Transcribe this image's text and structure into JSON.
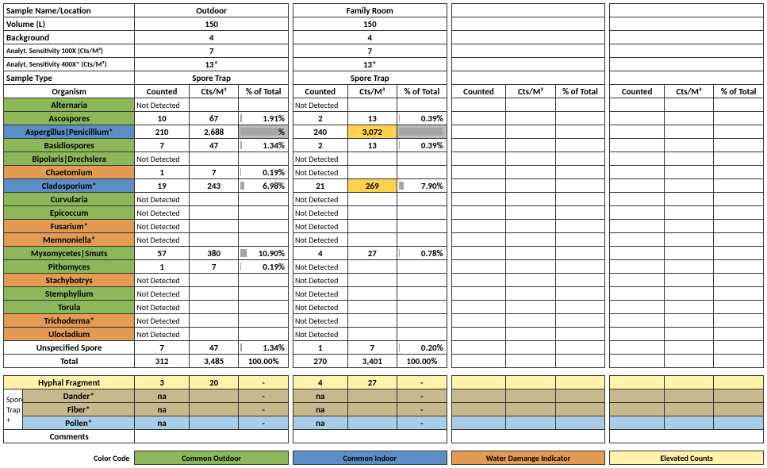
{
  "header_rows": [
    {
      "label": "Sample Name/Location",
      "vals": [
        "Outdoor",
        "Family Room",
        "",
        ""
      ]
    },
    {
      "label": "Volume (L)",
      "vals": [
        "150",
        "150",
        "",
        ""
      ]
    },
    {
      "label": "Background",
      "vals": [
        "4",
        "4",
        "",
        ""
      ]
    },
    {
      "label": "Analyt. Sensitivity 100X (Cts/M³)",
      "label_small": true,
      "vals": [
        "7",
        "7",
        "",
        ""
      ]
    },
    {
      "label": "Analyt. Sensitivity 400X* (Cts/M³)",
      "label_small": true,
      "vals": [
        "13*",
        "13*",
        "",
        ""
      ]
    },
    {
      "label": "Sample Type",
      "vals": [
        "Spore Trap",
        "Spore Trap",
        "",
        ""
      ]
    }
  ],
  "col_headers": {
    "organism": "Organism",
    "counted": "Counted",
    "cts": "Cts/M³",
    "pct": "% of Total"
  },
  "organisms": [
    {
      "name": "Alternaria",
      "cls": "org-green",
      "s": [
        {
          "nd": true
        },
        {
          "nd": true
        },
        {},
        {}
      ]
    },
    {
      "name": "Ascospores",
      "cls": "org-green",
      "s": [
        {
          "c": "10",
          "v": "67",
          "p": "1.91%",
          "pw": 3
        },
        {
          "c": "2",
          "v": "13",
          "p": "0.39%",
          "pw": 1
        },
        {},
        {}
      ]
    },
    {
      "name": "Aspergillus|Penicillium*",
      "cls": "org-blue",
      "s": [
        {
          "c": "210",
          "v": "2,688",
          "p": "77.14%",
          "pw": 77,
          "hlp": "gray"
        },
        {
          "c": "240",
          "v": "3,072",
          "p": "90.33%",
          "pw": 90,
          "hlv": "yellow",
          "hlp": "gray"
        },
        {},
        {}
      ]
    },
    {
      "name": "Basidiospores",
      "cls": "org-green",
      "s": [
        {
          "c": "7",
          "v": "47",
          "p": "1.34%",
          "pw": 2
        },
        {
          "c": "2",
          "v": "13",
          "p": "0.39%",
          "pw": 1
        },
        {},
        {}
      ]
    },
    {
      "name": "Bipolaris|Drechslera",
      "cls": "org-green",
      "s": [
        {
          "nd": true
        },
        {
          "nd": true
        },
        {},
        {}
      ]
    },
    {
      "name": "Chaetomium",
      "cls": "org-orange",
      "s": [
        {
          "c": "1",
          "v": "7",
          "p": "0.19%",
          "pw": 1
        },
        {
          "nd": true
        },
        {},
        {}
      ]
    },
    {
      "name": "Cladosporium*",
      "cls": "org-blue",
      "s": [
        {
          "c": "19",
          "v": "243",
          "p": "6.98%",
          "pw": 8
        },
        {
          "c": "21",
          "v": "269",
          "p": "7.90%",
          "pw": 9,
          "hlv": "yellow"
        },
        {},
        {}
      ]
    },
    {
      "name": "Curvularia",
      "cls": "org-green",
      "s": [
        {
          "nd": true
        },
        {
          "nd": true
        },
        {},
        {}
      ]
    },
    {
      "name": "Epicoccum",
      "cls": "org-green",
      "s": [
        {
          "nd": true
        },
        {
          "nd": true
        },
        {},
        {}
      ]
    },
    {
      "name": "Fusarium*",
      "cls": "org-orange",
      "s": [
        {
          "nd": true
        },
        {
          "nd": true
        },
        {},
        {}
      ]
    },
    {
      "name": "Memnoniella*",
      "cls": "org-orange",
      "s": [
        {
          "nd": true
        },
        {
          "nd": true
        },
        {},
        {}
      ]
    },
    {
      "name": "Myxomycetes|Smuts",
      "cls": "org-green",
      "s": [
        {
          "c": "57",
          "v": "380",
          "p": "10.90%",
          "pw": 12
        },
        {
          "c": "4",
          "v": "27",
          "p": "0.78%",
          "pw": 1
        },
        {},
        {}
      ]
    },
    {
      "name": "Pithomyces",
      "cls": "org-green",
      "s": [
        {
          "c": "1",
          "v": "7",
          "p": "0.19%",
          "pw": 1
        },
        {
          "nd": true
        },
        {},
        {}
      ]
    },
    {
      "name": "Stachybotrys",
      "cls": "org-orange",
      "s": [
        {
          "nd": true
        },
        {
          "nd": true
        },
        {},
        {}
      ]
    },
    {
      "name": "Stemphylium",
      "cls": "org-green",
      "s": [
        {
          "nd": true
        },
        {
          "nd": true
        },
        {},
        {}
      ]
    },
    {
      "name": "Torula",
      "cls": "org-green",
      "s": [
        {
          "nd": true
        },
        {
          "nd": true
        },
        {},
        {}
      ]
    },
    {
      "name": "Trichoderma*",
      "cls": "org-orange",
      "s": [
        {
          "nd": true
        },
        {
          "nd": true
        },
        {},
        {}
      ]
    },
    {
      "name": "Ulocladium",
      "cls": "org-orange",
      "s": [
        {
          "nd": true
        },
        {
          "nd": true
        },
        {},
        {}
      ]
    },
    {
      "name": "Unspecified Spore",
      "cls": "org-white",
      "s": [
        {
          "c": "7",
          "v": "47",
          "p": "1.34%",
          "pw": 2
        },
        {
          "c": "1",
          "v": "7",
          "p": "0.20%",
          "pw": 1
        },
        {},
        {}
      ]
    }
  ],
  "total": {
    "label": "Total",
    "s": [
      {
        "c": "312",
        "v": "3,485",
        "p": "100.00%"
      },
      {
        "c": "270",
        "v": "3,401",
        "p": "100.00%"
      },
      {},
      {}
    ]
  },
  "nd_text": "Not Detected",
  "extras": {
    "spore_trap_label": "Spore Trap +",
    "rows": [
      {
        "name": "Hyphal Fragment",
        "cls": "extra-yellow",
        "s": [
          {
            "c": "3",
            "v": "20",
            "p": "-"
          },
          {
            "c": "4",
            "v": "27",
            "p": "-"
          },
          {},
          {}
        ]
      },
      {
        "name": "Dander*",
        "cls": "extra-tan",
        "s": [
          {
            "c": "na",
            "v": "",
            "p": "-"
          },
          {
            "c": "na",
            "v": "",
            "p": "-"
          },
          {},
          {}
        ]
      },
      {
        "name": "Fiber*",
        "cls": "extra-tan",
        "s": [
          {
            "c": "na",
            "v": "",
            "p": "-"
          },
          {
            "c": "na",
            "v": "",
            "p": "-"
          },
          {},
          {}
        ]
      },
      {
        "name": "Pollen*",
        "cls": "extra-blue",
        "s": [
          {
            "c": "na",
            "v": "",
            "p": "-"
          },
          {
            "c": "na",
            "v": "",
            "p": "-"
          },
          {},
          {}
        ]
      }
    ],
    "comments_label": "Comments"
  },
  "legend": {
    "label": "Color Code",
    "items": [
      {
        "text": "Common Outdoor",
        "cls": "org-green"
      },
      {
        "text": "Common Indoor",
        "cls": "org-blue"
      },
      {
        "text": "Water Damange Indicator",
        "cls": "org-orange"
      },
      {
        "text": "Elevated Counts",
        "bg": "#fff2aa"
      }
    ]
  },
  "colors": {
    "green": "#8cb85a",
    "blue": "#5b8ec6",
    "orange": "#e39a52",
    "yellow": "#ffd24d",
    "gray": "#bdbdbd",
    "tan": "#c7b98c",
    "ltblue": "#a7cde8",
    "ltyellow": "#fff2aa"
  }
}
